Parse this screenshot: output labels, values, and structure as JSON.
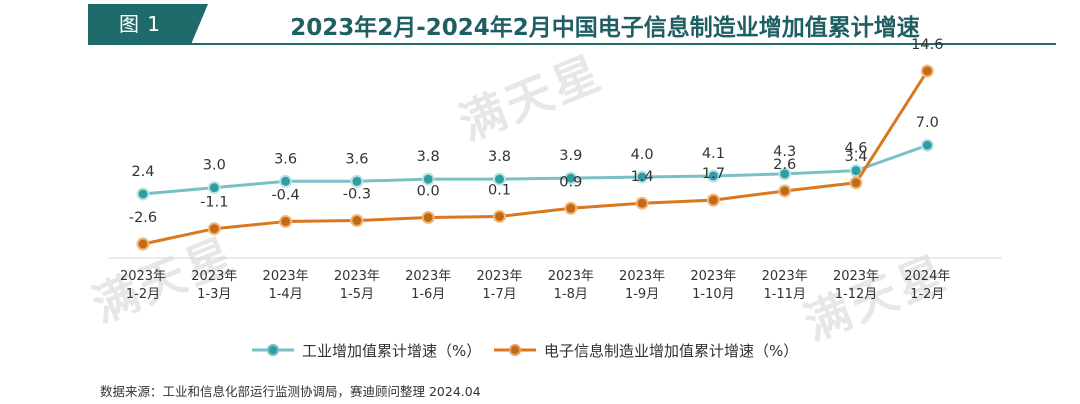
{
  "figure_label": "图 1",
  "title": "2023年2月-2024年2月中国电子信息制造业增加值累计增速",
  "source": "数据来源：工业和信息化部运行监测协调局，赛迪顾问整理 2024.04",
  "watermark": "满天星",
  "colors": {
    "accent": "#1f6b6b",
    "series_industry": "#79c0c6",
    "series_industry_marker": "#2f9ea3",
    "series_electronics": "#d9781e",
    "series_electronics_marker": "#c36a12"
  },
  "chart_data": {
    "type": "line",
    "title": "2023年2月-2024年2月中国电子信息制造业增加值累计增速",
    "categories": [
      "2023年 1-2月",
      "2023年 1-3月",
      "2023年 1-4月",
      "2023年 1-5月",
      "2023年 1-6月",
      "2023年 1-7月",
      "2023年 1-8月",
      "2023年 1-9月",
      "2023年 1-10月",
      "2023年 1-11月",
      "2023年 1-12月",
      "2024年 1-2月"
    ],
    "category_lines": [
      [
        "2023年",
        "1-2月"
      ],
      [
        "2023年",
        "1-3月"
      ],
      [
        "2023年",
        "1-4月"
      ],
      [
        "2023年",
        "1-5月"
      ],
      [
        "2023年",
        "1-6月"
      ],
      [
        "2023年",
        "1-7月"
      ],
      [
        "2023年",
        "1-8月"
      ],
      [
        "2023年",
        "1-9月"
      ],
      [
        "2023年",
        "1-10月"
      ],
      [
        "2023年",
        "1-11月"
      ],
      [
        "2023年",
        "1-12月"
      ],
      [
        "2024年",
        "1-2月"
      ]
    ],
    "series": [
      {
        "name": "工业增加值累计增速（%）",
        "values": [
          2.4,
          3.0,
          3.6,
          3.6,
          3.8,
          3.8,
          3.9,
          4.0,
          4.1,
          4.3,
          4.6,
          7.0
        ],
        "labels": [
          "2.4",
          "3.0",
          "3.6",
          "3.6",
          "3.8",
          "3.8",
          "3.9",
          "4.0",
          "4.1",
          "4.3",
          "4.6",
          "7.0"
        ]
      },
      {
        "name": "电子信息制造业增加值累计增速（%）",
        "values": [
          -2.6,
          -1.1,
          -0.4,
          -0.3,
          0.0,
          0.1,
          0.9,
          1.4,
          1.7,
          2.6,
          3.4,
          14.6
        ],
        "labels": [
          "-2.6",
          "-1.1",
          "-0.4",
          "-0.3",
          "0.0",
          "0.1",
          "0.9",
          "1.4",
          "1.7",
          "2.6",
          "3.4",
          "14.6"
        ]
      }
    ],
    "legend_position": "bottom",
    "grid": false
  }
}
